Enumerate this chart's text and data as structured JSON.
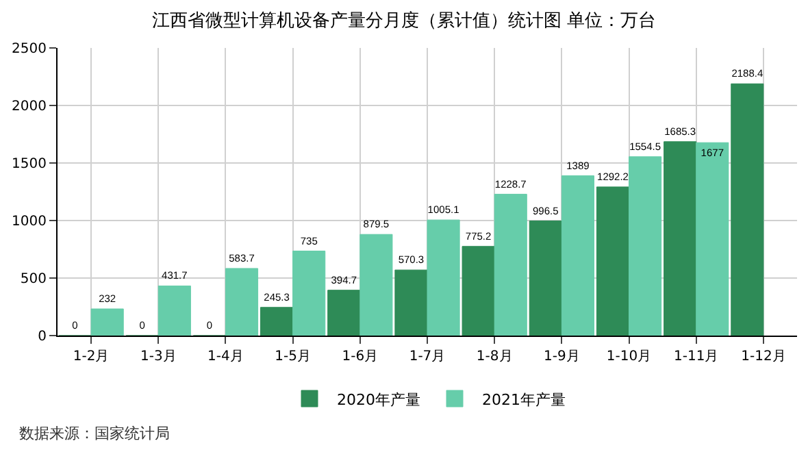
{
  "chart_data": {
    "type": "bar",
    "title": "江西省微型计算机设备产量分月度（累计值）统计图 单位：万台",
    "categories": [
      "1-2月",
      "1-3月",
      "1-4月",
      "1-5月",
      "1-6月",
      "1-7月",
      "1-8月",
      "1-9月",
      "1-10月",
      "1-11月",
      "1-12月"
    ],
    "series": [
      {
        "name": "2020年产量",
        "color": "#2e8b57",
        "values": [
          0,
          0,
          0,
          245.3,
          394.7,
          570.3,
          775.2,
          996.5,
          1292.2,
          1685.3,
          2188.4
        ]
      },
      {
        "name": "2021年产量",
        "color": "#66cdaa",
        "values": [
          232,
          431.7,
          583.7,
          735,
          879.5,
          1005.1,
          1228.7,
          1389,
          1554.5,
          1677,
          null
        ]
      }
    ],
    "ylim": [
      0,
      2500
    ],
    "yticks": [
      0,
      500,
      1000,
      1500,
      2000,
      2500
    ],
    "grid": true,
    "legend": "bottom",
    "data_labels": true,
    "annotations": [
      "数据来源：国家统计局"
    ]
  }
}
